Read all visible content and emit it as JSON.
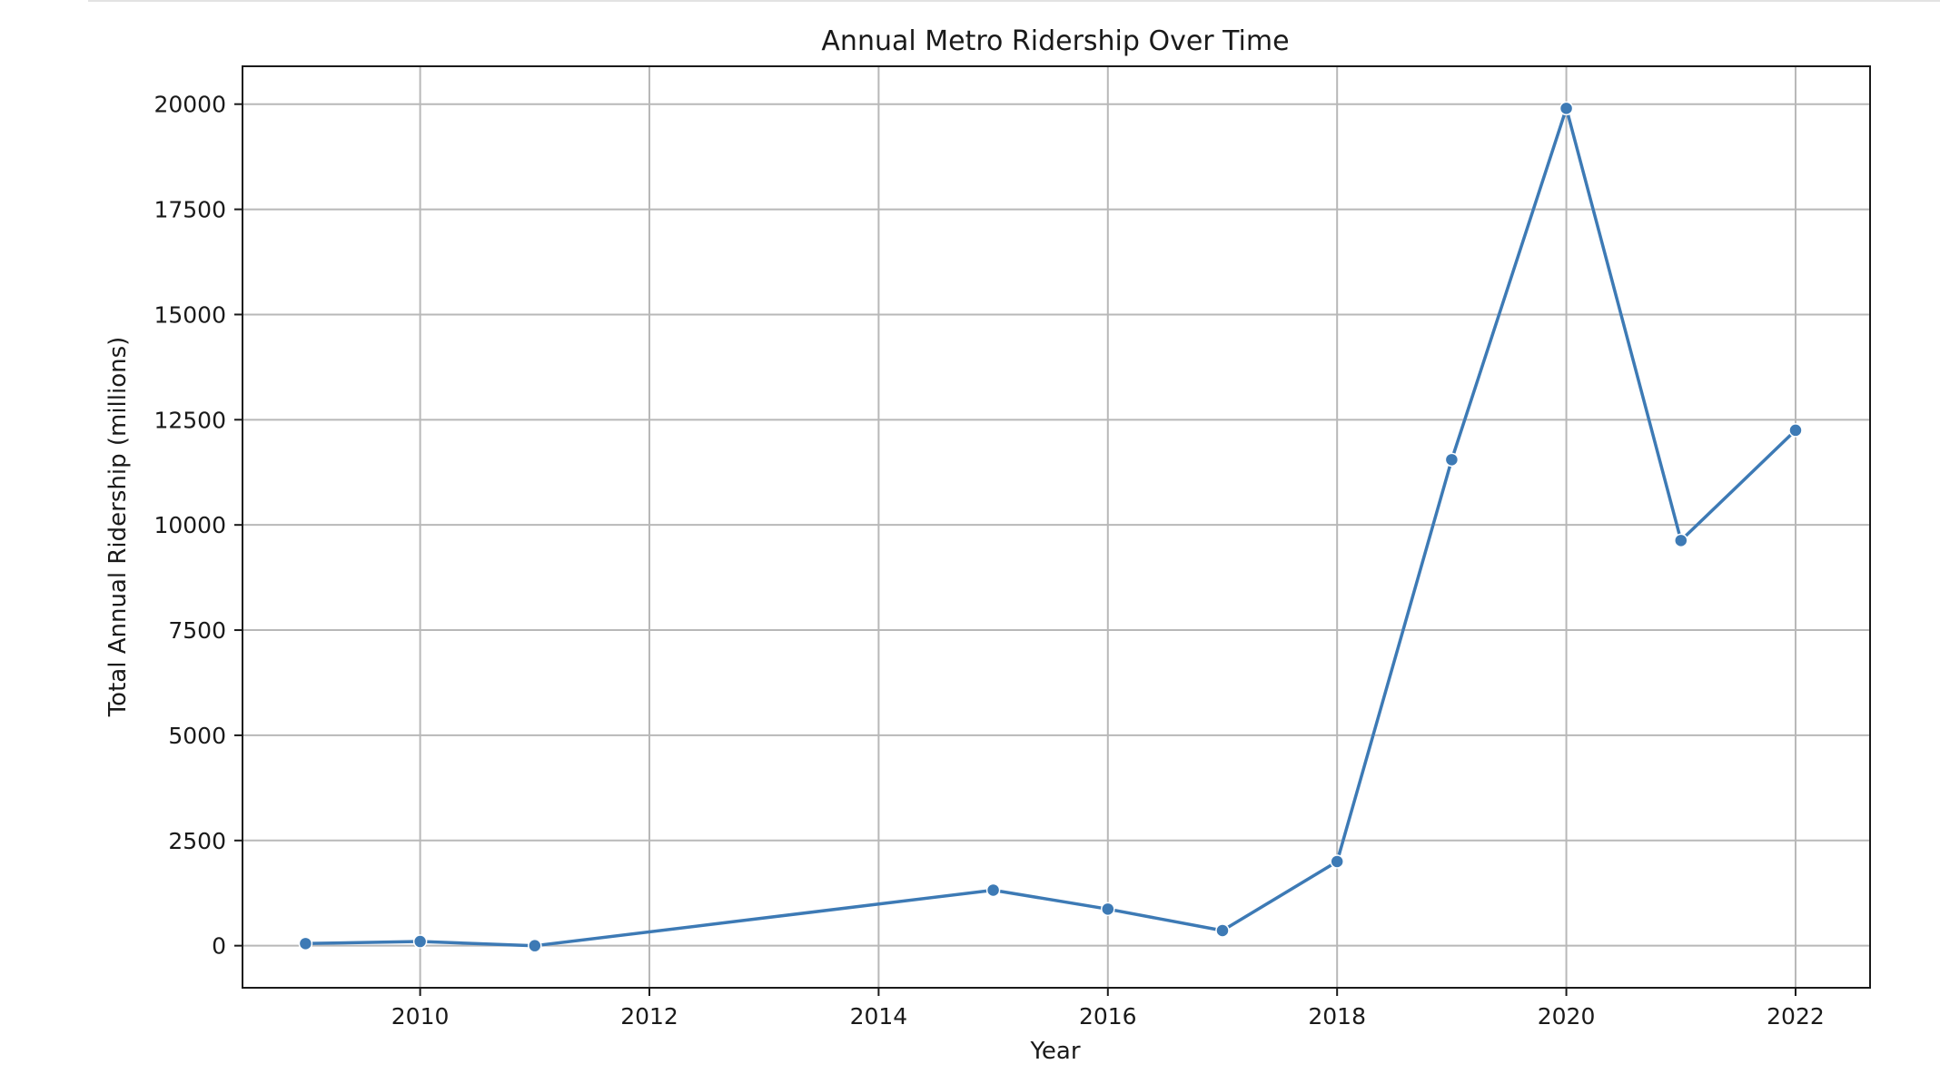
{
  "chart_data": {
    "type": "line",
    "title": "Annual Metro Ridership Over Time",
    "xlabel": "Year",
    "ylabel": "Total Annual Ridership (millions)",
    "xlim": [
      2008.45,
      2022.65
    ],
    "ylim": [
      -1000,
      20900
    ],
    "x_ticks": [
      2010,
      2012,
      2014,
      2016,
      2018,
      2020,
      2022
    ],
    "y_ticks": [
      0,
      2500,
      5000,
      7500,
      10000,
      12500,
      15000,
      17500,
      20000
    ],
    "grid": true,
    "legend": "none",
    "series": [
      {
        "color": "#3d7ab5",
        "marker": "circle",
        "x": [
          2009,
          2010,
          2011,
          2015,
          2016,
          2017,
          2018,
          2019,
          2020,
          2021,
          2022
        ],
        "y": [
          50,
          100,
          0,
          1320,
          870,
          360,
          2000,
          11550,
          19900,
          9630,
          12250
        ]
      }
    ]
  }
}
